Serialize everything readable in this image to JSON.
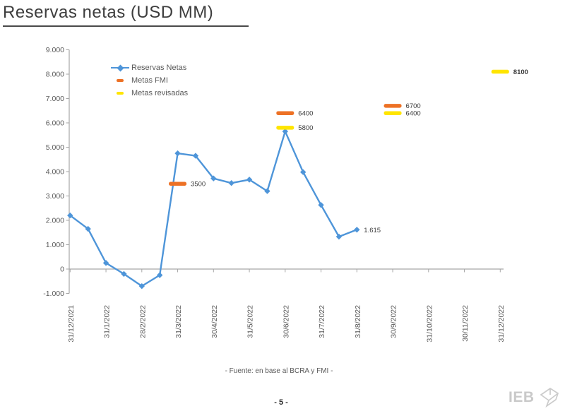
{
  "title": "Reservas netas  (USD MM)",
  "chart_data": {
    "type": "line",
    "title": "Reservas netas (USD MM)",
    "ylim": [
      -1000,
      9000
    ],
    "y_tick_labels": [
      "9.000",
      "8.000",
      "7.000",
      "6.000",
      "5.000",
      "4.000",
      "3.000",
      "2.000",
      "1.000",
      "0",
      "-1.000"
    ],
    "x_categories": [
      "31/12/2021",
      "31/1/2022",
      "28/2/2022",
      "31/3/2022",
      "30/4/2022",
      "31/5/2022",
      "30/6/2022",
      "31/7/2022",
      "31/8/2022",
      "30/9/2022",
      "31/10/2022",
      "30/11/2022",
      "31/12/2022"
    ],
    "series": [
      {
        "name": "Reservas Netas",
        "color": "#4E95D9",
        "marker": "diamond",
        "points": [
          {
            "month_offset": 0.0,
            "value": 2200
          },
          {
            "month_offset": 0.5,
            "value": 1650
          },
          {
            "month_offset": 1.0,
            "value": 250
          },
          {
            "month_offset": 1.5,
            "value": -200
          },
          {
            "month_offset": 2.0,
            "value": -700
          },
          {
            "month_offset": 2.5,
            "value": -250
          },
          {
            "month_offset": 3.0,
            "value": 4750
          },
          {
            "month_offset": 3.5,
            "value": 4650
          },
          {
            "month_offset": 4.0,
            "value": 3720
          },
          {
            "month_offset": 4.5,
            "value": 3530
          },
          {
            "month_offset": 5.0,
            "value": 3670
          },
          {
            "month_offset": 5.5,
            "value": 3200
          },
          {
            "month_offset": 6.0,
            "value": 5650
          },
          {
            "month_offset": 6.5,
            "value": 3980
          },
          {
            "month_offset": 7.0,
            "value": 2630
          },
          {
            "month_offset": 7.5,
            "value": 1330
          },
          {
            "month_offset": 8.0,
            "value": 1615
          }
        ],
        "last_point_label": "1.615"
      }
    ],
    "target_series": [
      {
        "name": "Metas FMI",
        "color": "#ED7125",
        "points": [
          {
            "month_offset": 3.0,
            "value": 3500,
            "label": "3500",
            "bold": false
          },
          {
            "month_offset": 6.0,
            "value": 6400,
            "label": "6400",
            "bold": false
          },
          {
            "month_offset": 9.0,
            "value": 6700,
            "label": "6700",
            "bold": false
          }
        ]
      },
      {
        "name": "Metas revisadas",
        "color": "#FFE500",
        "points": [
          {
            "month_offset": 6.0,
            "value": 5800,
            "label": "5800",
            "bold": false
          },
          {
            "month_offset": 9.0,
            "value": 6400,
            "label": "6400",
            "bold": false
          },
          {
            "month_offset": 12.0,
            "value": 8100,
            "label": "8100",
            "bold": true
          }
        ]
      }
    ]
  },
  "legend": {
    "items": [
      {
        "label": "Reservas Netas"
      },
      {
        "label": "Metas FMI"
      },
      {
        "label": "Metas revisadas"
      }
    ]
  },
  "footer": {
    "source": "- Fuente: en base al BCRA y FMI -",
    "page": "- 5 -",
    "logo_text": "IEB"
  }
}
